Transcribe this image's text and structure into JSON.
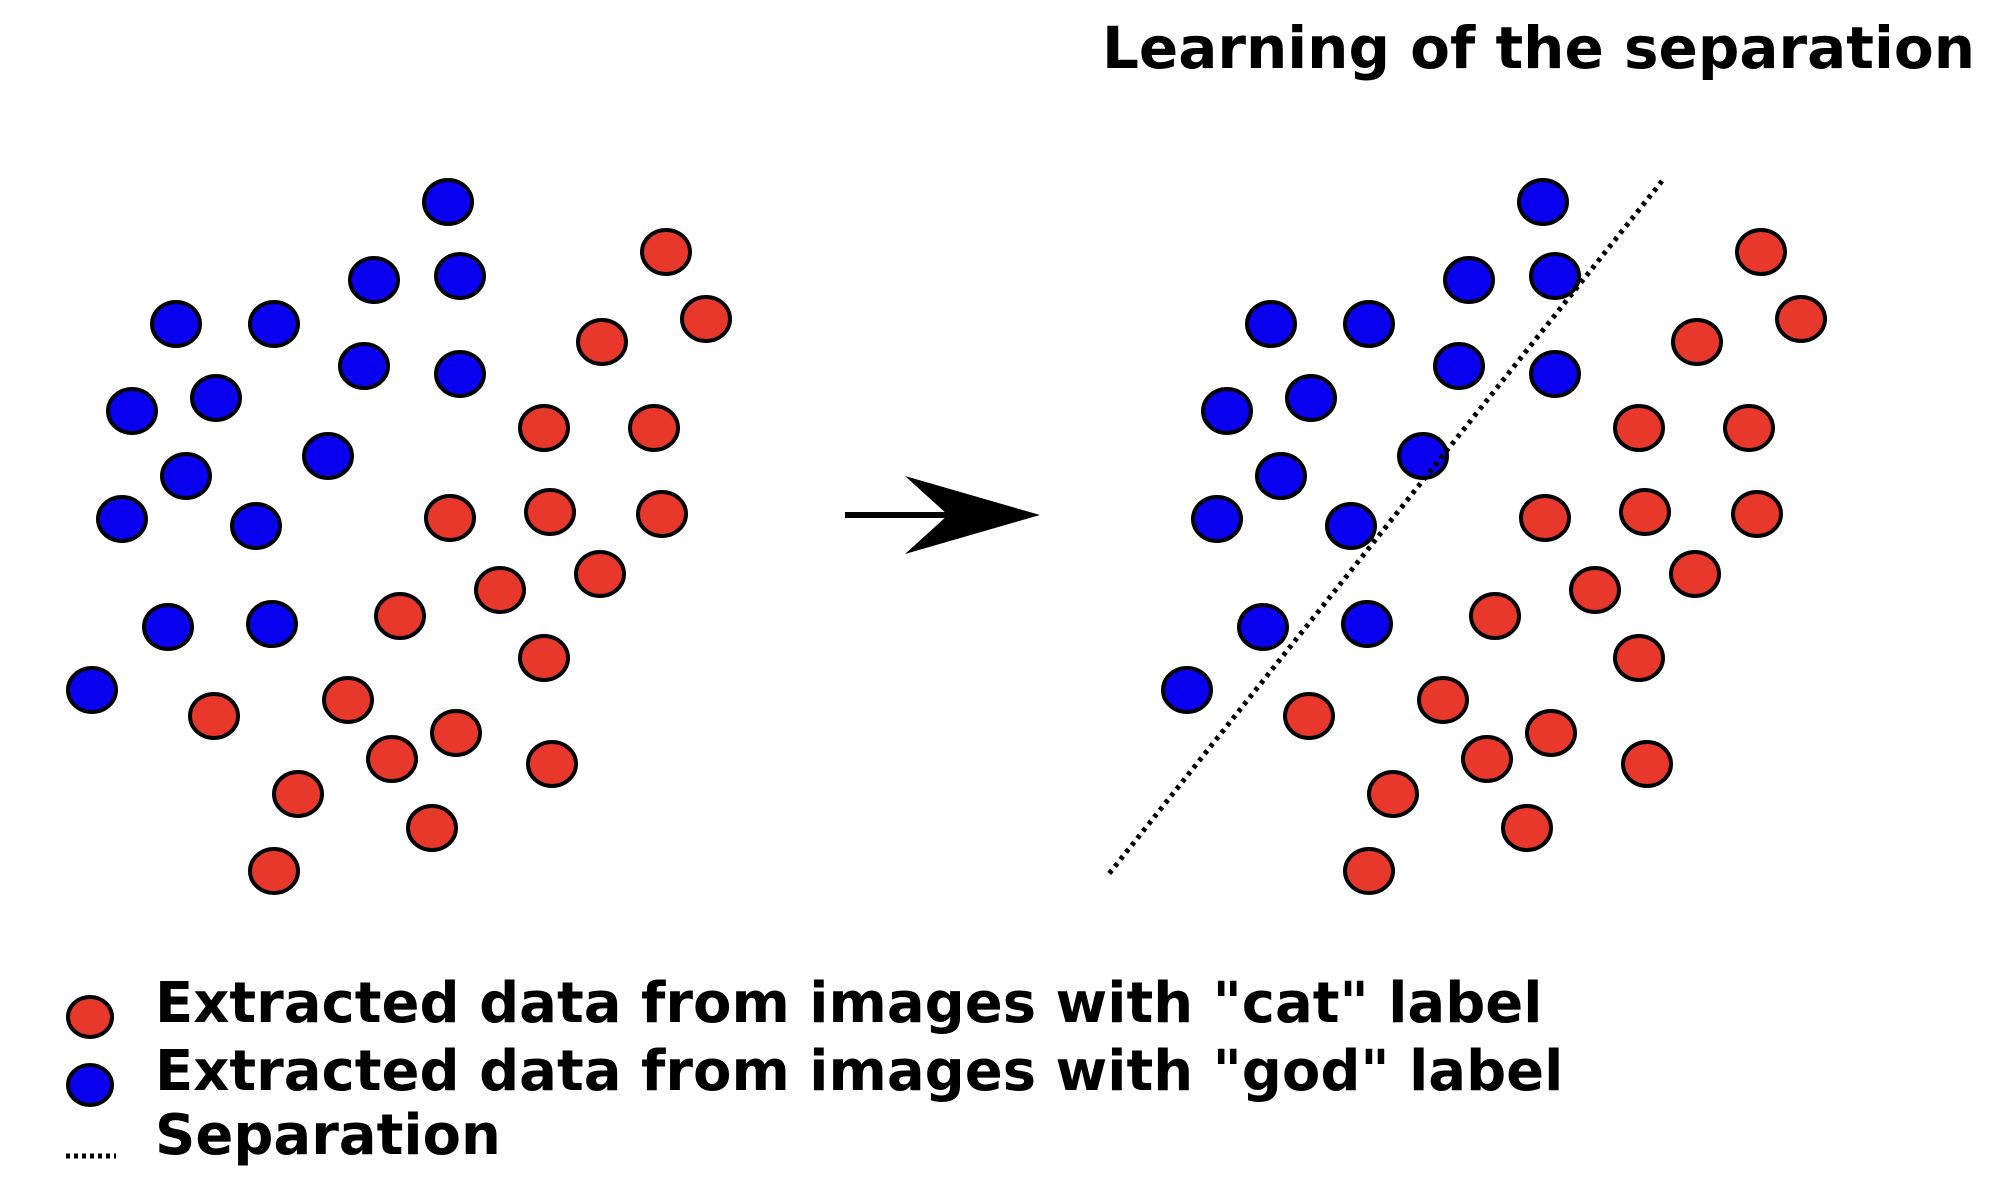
{
  "title": "Learning of the separation",
  "colors": {
    "cat": "#e8382c",
    "dog": "#0a00f0",
    "outline": "#000000",
    "text": "#000000",
    "background": "#ffffff"
  },
  "legend": [
    {
      "key": "cat",
      "label": "Extracted data from images with \"cat\" label"
    },
    {
      "key": "dog",
      "label": "Extracted data from images with \"god\" label"
    },
    {
      "key": "separation",
      "label": "Separation"
    }
  ],
  "arrow_icon": "right-arrow-icon"
}
